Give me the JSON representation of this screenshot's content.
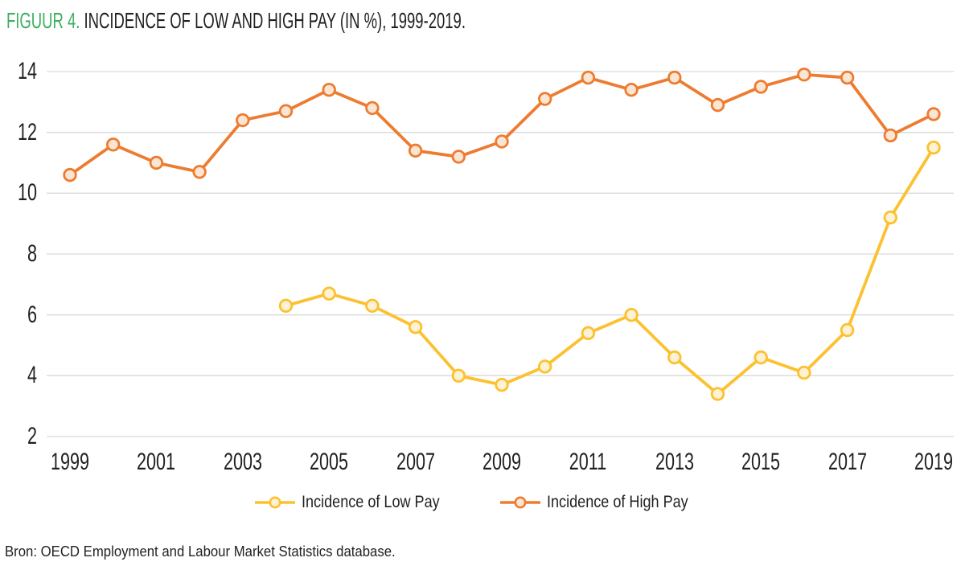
{
  "figure": {
    "label": "FIGUUR 4.",
    "title": "INCIDENCE OF LOW AND HIGH PAY (IN %), 1999-2019.",
    "source": "Bron: OECD Employment and Labour Market Statistics database."
  },
  "colors": {
    "accent_green": "#3dae60",
    "text_dark": "#231f20",
    "gridline": "#d9d9d9",
    "low_pay_line": "#fcc130",
    "low_pay_marker_fill": "#fdf2d3",
    "high_pay_line": "#ed7c31",
    "high_pay_marker_fill": "#fbe5d3"
  },
  "chart_data": {
    "type": "line",
    "title": "INCIDENCE OF LOW AND HIGH PAY (IN %), 1999-2019.",
    "xlabel": "",
    "ylabel": "",
    "ylim": [
      2,
      14
    ],
    "yticks": [
      14,
      12,
      10,
      8,
      6,
      4,
      2
    ],
    "xticks": [
      1999,
      2001,
      2003,
      2005,
      2007,
      2009,
      2011,
      2013,
      2015,
      2017,
      2019
    ],
    "grid": "horizontal",
    "legend_position": "bottom",
    "series": [
      {
        "id": "low-pay",
        "name": "Incidence of Low Pay",
        "color": "#fcc130",
        "marker_fill": "#fdf2d3",
        "years": [
          2004,
          2005,
          2006,
          2007,
          2008,
          2009,
          2010,
          2011,
          2012,
          2013,
          2014,
          2015,
          2016,
          2017,
          2018,
          2019
        ],
        "values": [
          6.3,
          6.7,
          6.3,
          5.6,
          4.0,
          3.7,
          4.3,
          5.4,
          6.0,
          4.6,
          3.4,
          4.6,
          4.1,
          5.5,
          9.2,
          11.5
        ]
      },
      {
        "id": "high-pay",
        "name": "Incidence of High Pay",
        "color": "#ed7c31",
        "marker_fill": "#fbe5d3",
        "years": [
          1999,
          2000,
          2001,
          2002,
          2003,
          2004,
          2005,
          2006,
          2007,
          2008,
          2009,
          2010,
          2011,
          2012,
          2013,
          2014,
          2015,
          2016,
          2017,
          2018,
          2019
        ],
        "values": [
          10.6,
          11.6,
          11.0,
          10.7,
          12.4,
          12.7,
          13.4,
          12.8,
          11.4,
          11.2,
          11.7,
          13.1,
          13.8,
          13.4,
          13.8,
          12.9,
          13.5,
          13.9,
          13.8,
          11.9,
          12.6
        ]
      }
    ]
  }
}
